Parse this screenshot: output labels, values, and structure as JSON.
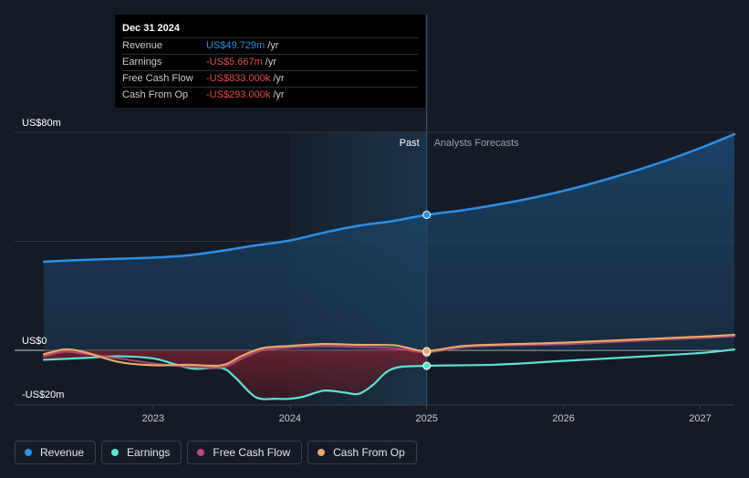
{
  "colors": {
    "revenue": "#2e8fe3",
    "earnings": "#5ce1d3",
    "free_cash_flow": "#c2477a",
    "cash_from_op": "#e8a866",
    "background": "#151b26"
  },
  "tooltip": {
    "date": "Dec 31 2024",
    "rows": [
      {
        "label": "Revenue",
        "value": "US$49.729m",
        "unit": "/yr",
        "color": "#2e8fe3"
      },
      {
        "label": "Earnings",
        "value": "-US$5.667m",
        "unit": "/yr",
        "color": "#e84b4b"
      },
      {
        "label": "Free Cash Flow",
        "value": "-US$833.000k",
        "unit": "/yr",
        "color": "#e84b4b"
      },
      {
        "label": "Cash From Op",
        "value": "-US$293.000k",
        "unit": "/yr",
        "color": "#e84b4b"
      }
    ]
  },
  "legend": [
    {
      "label": "Revenue",
      "color": "#2e8fe3"
    },
    {
      "label": "Earnings",
      "color": "#5ce1d3"
    },
    {
      "label": "Free Cash Flow",
      "color": "#c2477a"
    },
    {
      "label": "Cash From Op",
      "color": "#e8a866"
    }
  ],
  "chart_data": {
    "type": "line",
    "y_unit_labels": [
      "US$80m",
      "US$0",
      "-US$20m"
    ],
    "y_label_values": [
      80,
      0,
      -20
    ],
    "ylim": [
      -20,
      80
    ],
    "xlim": [
      2022.2,
      2027.25
    ],
    "x_ticks": [
      "2023",
      "2024",
      "2025",
      "2026",
      "2027"
    ],
    "x_tick_values": [
      2023,
      2024,
      2025,
      2026,
      2027
    ],
    "divider_x": 2025.0,
    "highlight_start": 2024.0,
    "past_label": "Past",
    "forecast_label": "Analysts Forecasts",
    "series": [
      {
        "name": "Revenue",
        "key": "revenue",
        "x": [
          2022.2,
          2022.5,
          2022.75,
          2023.0,
          2023.25,
          2023.5,
          2023.75,
          2024.0,
          2024.25,
          2024.5,
          2024.75,
          2025.0,
          2025.25,
          2025.5,
          2025.75,
          2026.0,
          2026.25,
          2026.5,
          2026.75,
          2027.0,
          2027.25
        ],
        "y": [
          32.5,
          33.2,
          33.6,
          34.0,
          34.8,
          36.5,
          38.5,
          40.3,
          43.2,
          45.7,
          47.4,
          49.7,
          51.3,
          53.3,
          55.7,
          58.5,
          61.8,
          65.5,
          69.6,
          74.2,
          79.3
        ]
      },
      {
        "name": "Earnings",
        "key": "earnings",
        "x": [
          2022.2,
          2022.5,
          2022.75,
          2023.0,
          2023.15,
          2023.3,
          2023.5,
          2023.6,
          2023.75,
          2023.9,
          2024.0,
          2024.1,
          2024.25,
          2024.4,
          2024.5,
          2024.6,
          2024.75,
          2025.0,
          2025.5,
          2026.0,
          2026.5,
          2027.0,
          2027.25
        ],
        "y": [
          -3.5,
          -2.8,
          -2.2,
          -3.0,
          -5.0,
          -6.8,
          -6.5,
          -10.0,
          -17.2,
          -17.8,
          -17.8,
          -17.0,
          -14.8,
          -15.5,
          -16.0,
          -13.0,
          -6.8,
          -5.7,
          -5.3,
          -3.9,
          -2.5,
          -1.0,
          0.3
        ]
      },
      {
        "name": "Free Cash Flow",
        "key": "free_cash_flow",
        "x": [
          2022.2,
          2022.35,
          2022.5,
          2022.75,
          2023.0,
          2023.25,
          2023.5,
          2023.65,
          2023.8,
          2024.0,
          2024.25,
          2024.5,
          2024.75,
          2024.85,
          2025.0,
          2025.25,
          2025.5,
          2026.0,
          2026.5,
          2027.0,
          2027.25
        ],
        "y": [
          -2.3,
          -0.5,
          -1.3,
          -3.0,
          -4.8,
          -6.0,
          -6.3,
          -3.0,
          0.0,
          1.0,
          1.5,
          1.2,
          0.8,
          0.2,
          -0.8,
          1.0,
          1.7,
          2.2,
          3.4,
          4.5,
          5.2
        ]
      },
      {
        "name": "Cash From Op",
        "key": "cash_from_op",
        "x": [
          2022.2,
          2022.35,
          2022.5,
          2022.75,
          2023.0,
          2023.25,
          2023.5,
          2023.65,
          2023.8,
          2024.0,
          2024.25,
          2024.5,
          2024.75,
          2024.85,
          2025.0,
          2025.25,
          2025.5,
          2026.0,
          2026.5,
          2027.0,
          2027.25
        ],
        "y": [
          -1.5,
          0.3,
          -0.7,
          -4.3,
          -5.5,
          -5.3,
          -5.5,
          -2.0,
          0.8,
          1.6,
          2.3,
          2.0,
          1.9,
          1.0,
          -0.3,
          1.5,
          2.1,
          2.8,
          3.9,
          5.0,
          5.7
        ]
      }
    ]
  }
}
